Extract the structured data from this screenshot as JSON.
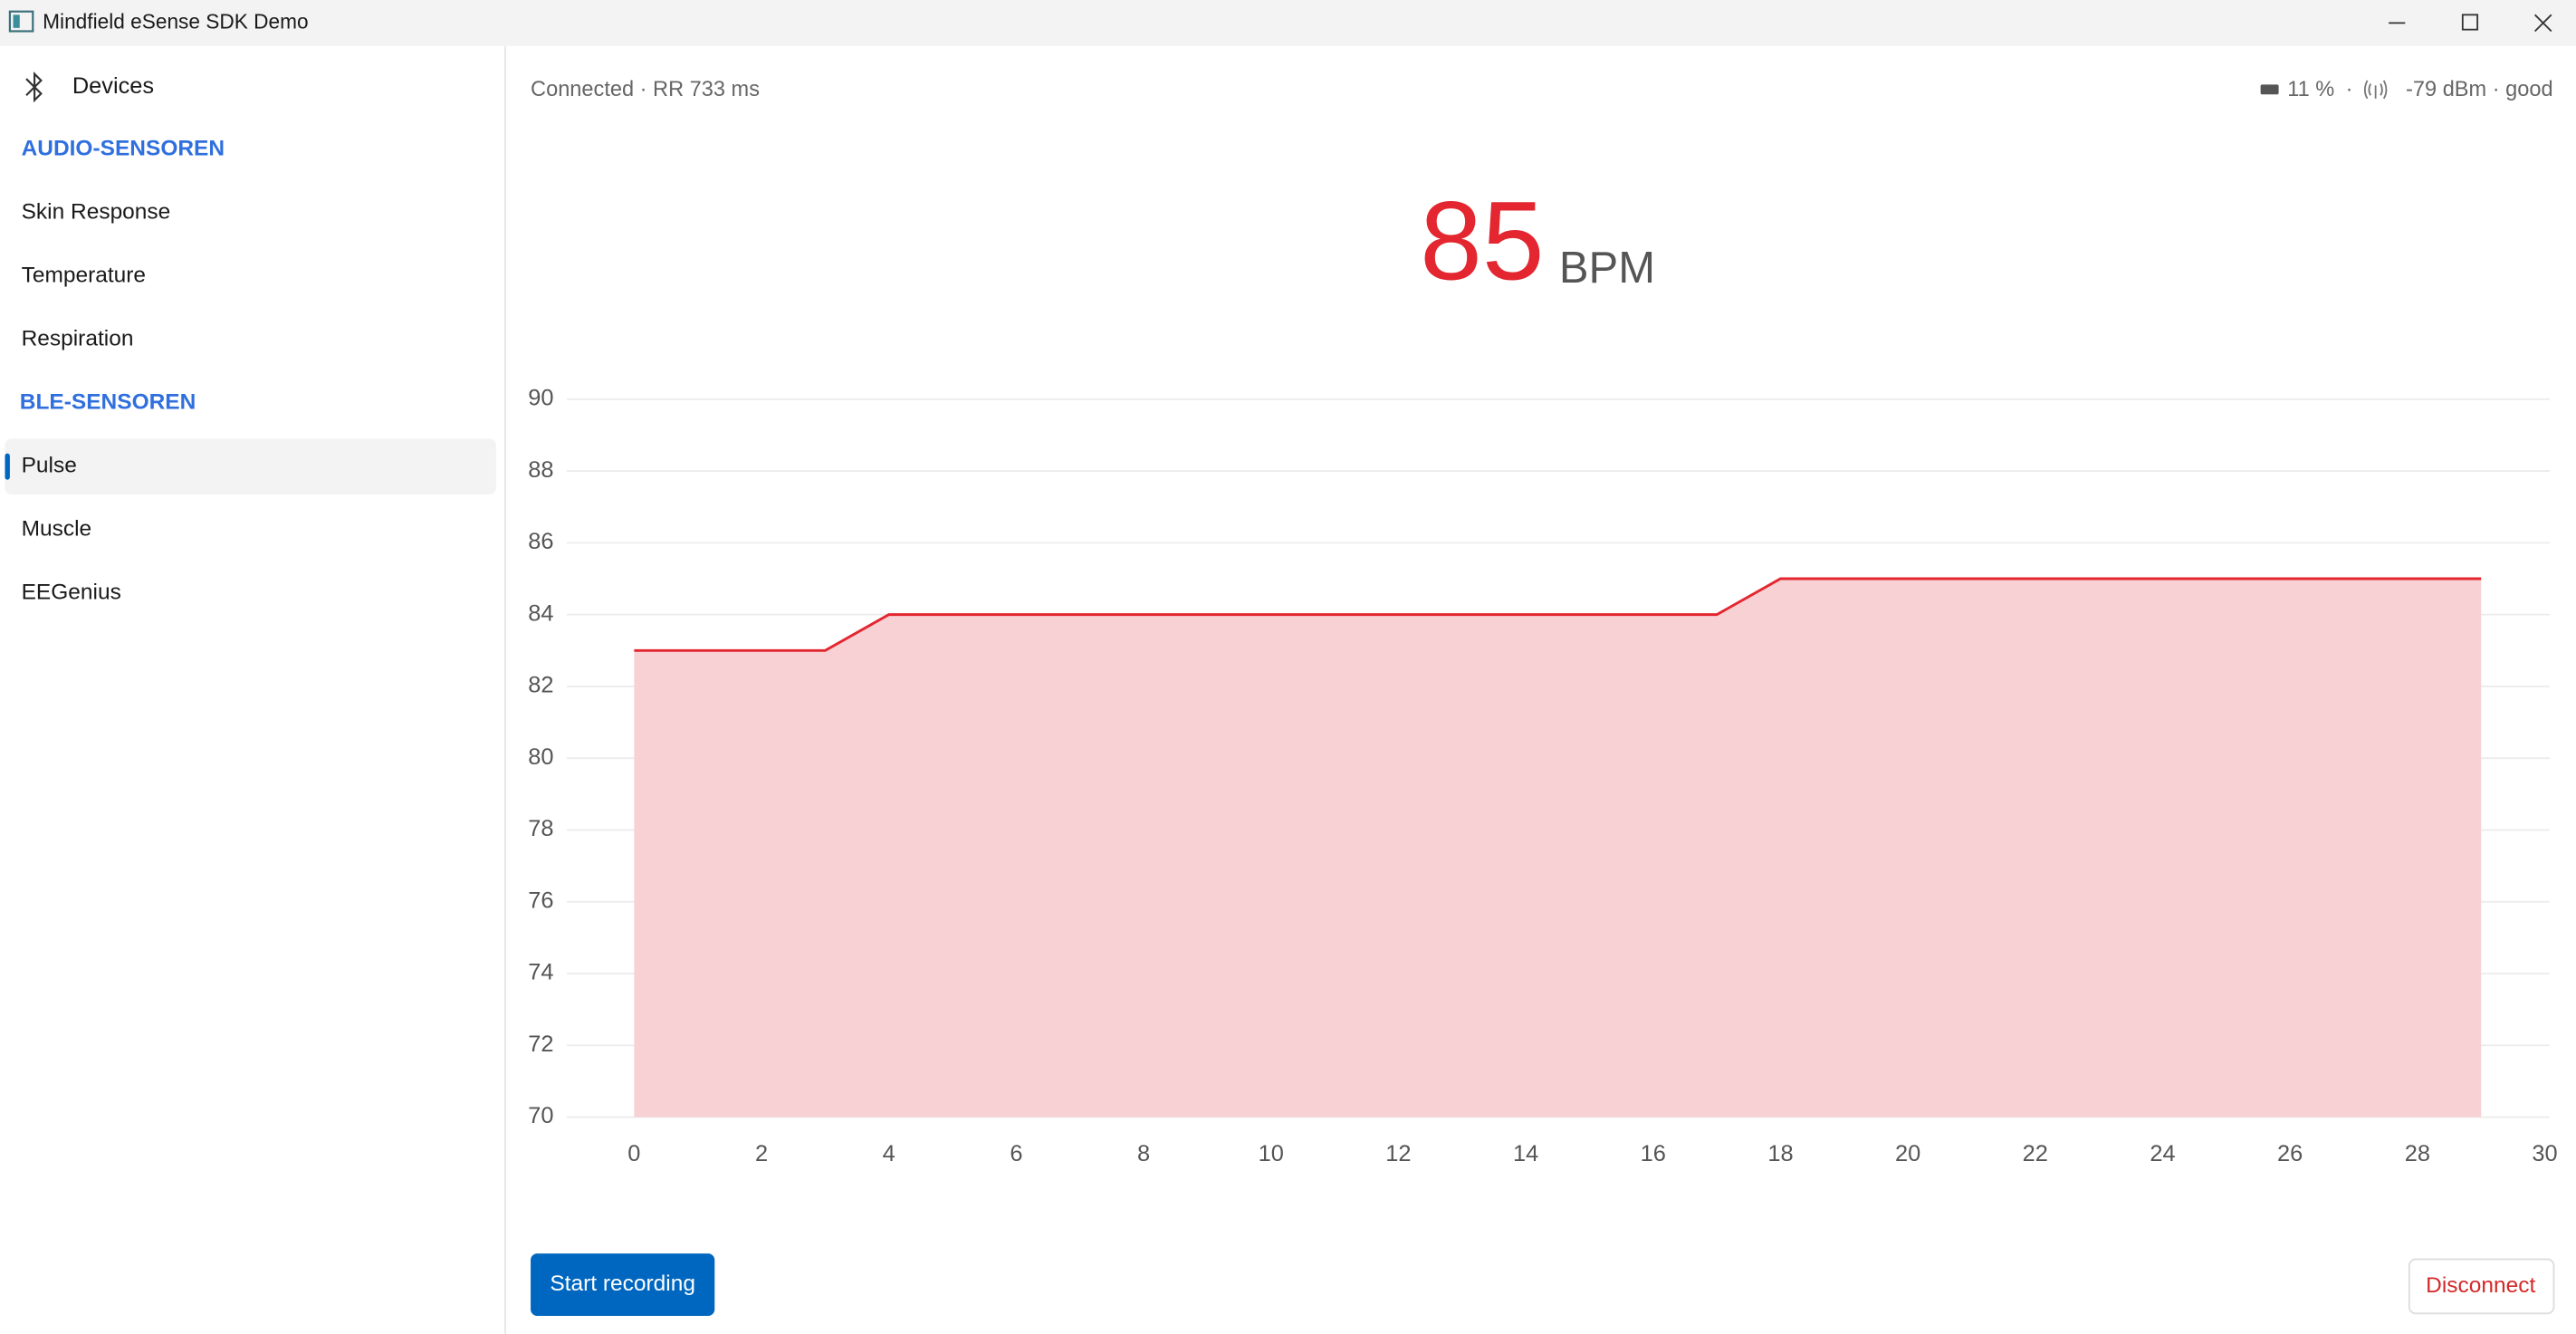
{
  "window": {
    "title": "Mindfield eSense SDK Demo"
  },
  "sidebar": {
    "devices": "Devices",
    "groups": [
      {
        "title": "AUDIO-SENSOREN",
        "items": [
          "Skin Response",
          "Temperature",
          "Respiration"
        ]
      },
      {
        "title": "BLE-SENSOREN",
        "items": [
          "Pulse",
          "Muscle",
          "EEGenius"
        ]
      }
    ]
  },
  "status": {
    "connection": "Connected · RR 733 ms",
    "battery": "11 %",
    "separator": "·",
    "signal": "-79 dBm · good"
  },
  "reading": {
    "value": "85",
    "unit": "BPM"
  },
  "chart_data": {
    "type": "area",
    "x": [
      0,
      1,
      2,
      3,
      4,
      5,
      6,
      7,
      8,
      9,
      10,
      11,
      12,
      13,
      14,
      15,
      16,
      17,
      18,
      19,
      20,
      21,
      22,
      23,
      24,
      25,
      26,
      27,
      28,
      29
    ],
    "values": [
      83,
      83,
      83,
      83,
      84,
      84,
      84,
      84,
      84,
      84,
      84,
      84,
      84,
      84,
      84,
      84,
      84,
      84,
      85,
      85,
      85,
      85,
      85,
      85,
      85,
      85,
      85,
      85,
      85,
      85
    ],
    "color": "#e3262f",
    "fill": "#f8d1d4",
    "xlim": [
      0,
      30
    ],
    "xticks": [
      0,
      2,
      4,
      6,
      8,
      10,
      12,
      14,
      16,
      18,
      20,
      22,
      24,
      26,
      28,
      30
    ],
    "ylim": [
      70,
      90
    ],
    "yticks": [
      70,
      72,
      74,
      76,
      78,
      80,
      82,
      84,
      86,
      88,
      90
    ],
    "grid": true
  },
  "buttons": {
    "record": "Start recording",
    "disconnect": "Disconnect"
  }
}
